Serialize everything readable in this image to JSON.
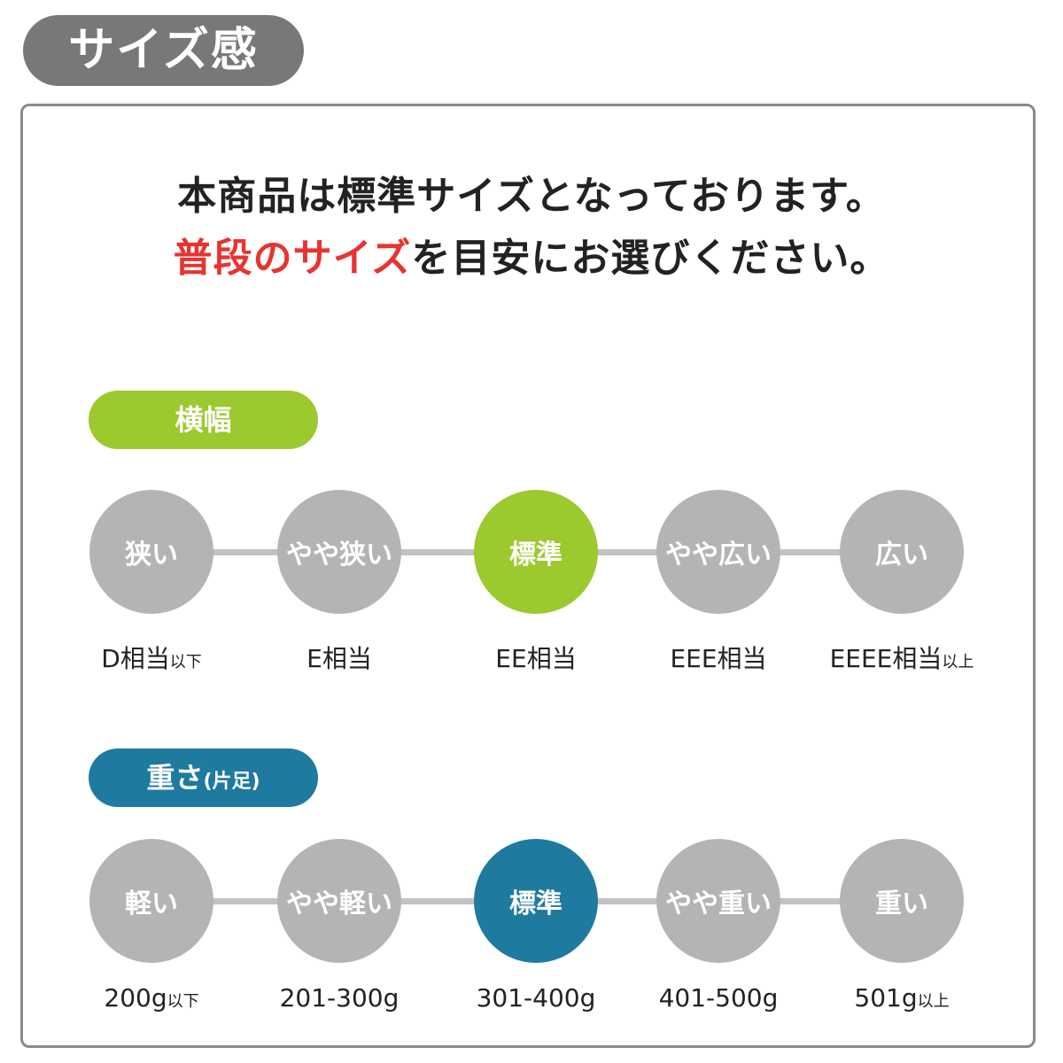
{
  "header": {
    "title": "サイズ感"
  },
  "intro": {
    "line1": "本商品は標準サイズとなっております。",
    "line2_red": "普段のサイズ",
    "line2_rest": "を目安にお選びください。"
  },
  "colors": {
    "header": "#787878",
    "width_accent": "#9bc92e",
    "weight_accent": "#1e7a9e",
    "inactive": "#b4b4b4",
    "emphasis": "#e8332f"
  },
  "width": {
    "title": "横幅",
    "selected_index": 2,
    "steps": [
      {
        "label": "狭い",
        "value": "D相当",
        "suffix": "以下"
      },
      {
        "label": "やや狭い",
        "value": "E相当",
        "suffix": ""
      },
      {
        "label": "標準",
        "value": "EE相当",
        "suffix": ""
      },
      {
        "label": "やや広い",
        "value": "EEE相当",
        "suffix": ""
      },
      {
        "label": "広い",
        "value": "EEEE相当",
        "suffix": "以上"
      }
    ]
  },
  "weight": {
    "title": "重さ",
    "title_note": "(片足)",
    "selected_index": 2,
    "steps": [
      {
        "label": "軽い",
        "value": "200g",
        "suffix": "以下"
      },
      {
        "label": "やや軽い",
        "value": "201-300g",
        "suffix": ""
      },
      {
        "label": "標準",
        "value": "301-400g",
        "suffix": ""
      },
      {
        "label": "やや重い",
        "value": "401-500g",
        "suffix": ""
      },
      {
        "label": "重い",
        "value": "501g",
        "suffix": "以上"
      }
    ]
  }
}
